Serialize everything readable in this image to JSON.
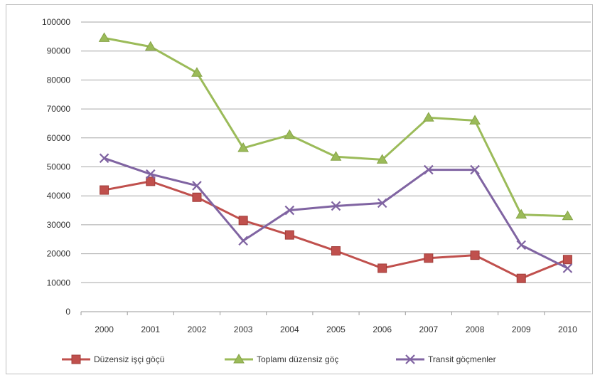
{
  "chart_data": {
    "type": "line",
    "title": "",
    "xlabel": "",
    "ylabel": "",
    "categories": [
      "2000",
      "2001",
      "2002",
      "2003",
      "2004",
      "2005",
      "2006",
      "2007",
      "2008",
      "2009",
      "2010"
    ],
    "ylim": [
      0,
      100000
    ],
    "yticks": [
      "0",
      "10000",
      "20000",
      "30000",
      "40000",
      "50000",
      "60000",
      "70000",
      "80000",
      "90000",
      "100000"
    ],
    "grid": true,
    "legend_position": "bottom",
    "series": [
      {
        "name": "Düzensiz işçi göçü",
        "color": "#c0504d",
        "marker": "square",
        "values": [
          42000,
          45000,
          39500,
          31500,
          26500,
          21000,
          15000,
          18500,
          19500,
          11500,
          18000
        ]
      },
      {
        "name": "Toplamı düzensiz göç",
        "color": "#9bbb59",
        "marker": "triangle",
        "values": [
          94500,
          91500,
          82500,
          56500,
          61000,
          53500,
          52500,
          67000,
          66000,
          33500,
          33000
        ]
      },
      {
        "name": "Transit göçmenler",
        "color": "#8064a2",
        "marker": "x",
        "values": [
          53000,
          47500,
          43500,
          24500,
          35000,
          36500,
          37500,
          49000,
          49000,
          23000,
          15000
        ]
      }
    ]
  }
}
